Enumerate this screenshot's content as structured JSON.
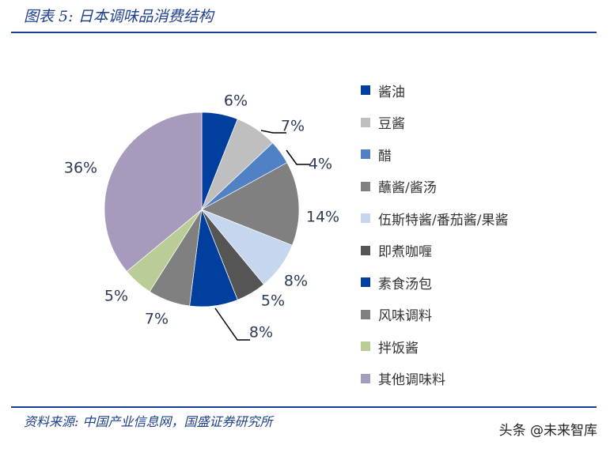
{
  "title": "图表 5:  日本调味品消费结构",
  "source": "资料来源:  中国产业信息网，国盛证券研究所",
  "watermark": "头条 @未来智库",
  "chart_data": {
    "type": "pie",
    "title": "日本调味品消费结构",
    "categories": [
      "酱油",
      "豆酱",
      "醋",
      "蘸酱/酱汤",
      "伍斯特酱/番茄酱/果酱",
      "即煮咖喱",
      "素食汤包",
      "风味调料",
      "拌饭酱",
      "其他调味料"
    ],
    "values": [
      6,
      7,
      4,
      14,
      8,
      5,
      8,
      7,
      5,
      36
    ],
    "labels": [
      "6%",
      "7%",
      "4%",
      "14%",
      "8%",
      "5%",
      "8%",
      "7%",
      "5%",
      "36%"
    ],
    "colors": [
      "#003f9e",
      "#bfbfbf",
      "#4f81c4",
      "#808080",
      "#c5d6ee",
      "#555555",
      "#003f9e",
      "#808080",
      "#bacd96",
      "#a79bbd"
    ],
    "legend": "right"
  }
}
